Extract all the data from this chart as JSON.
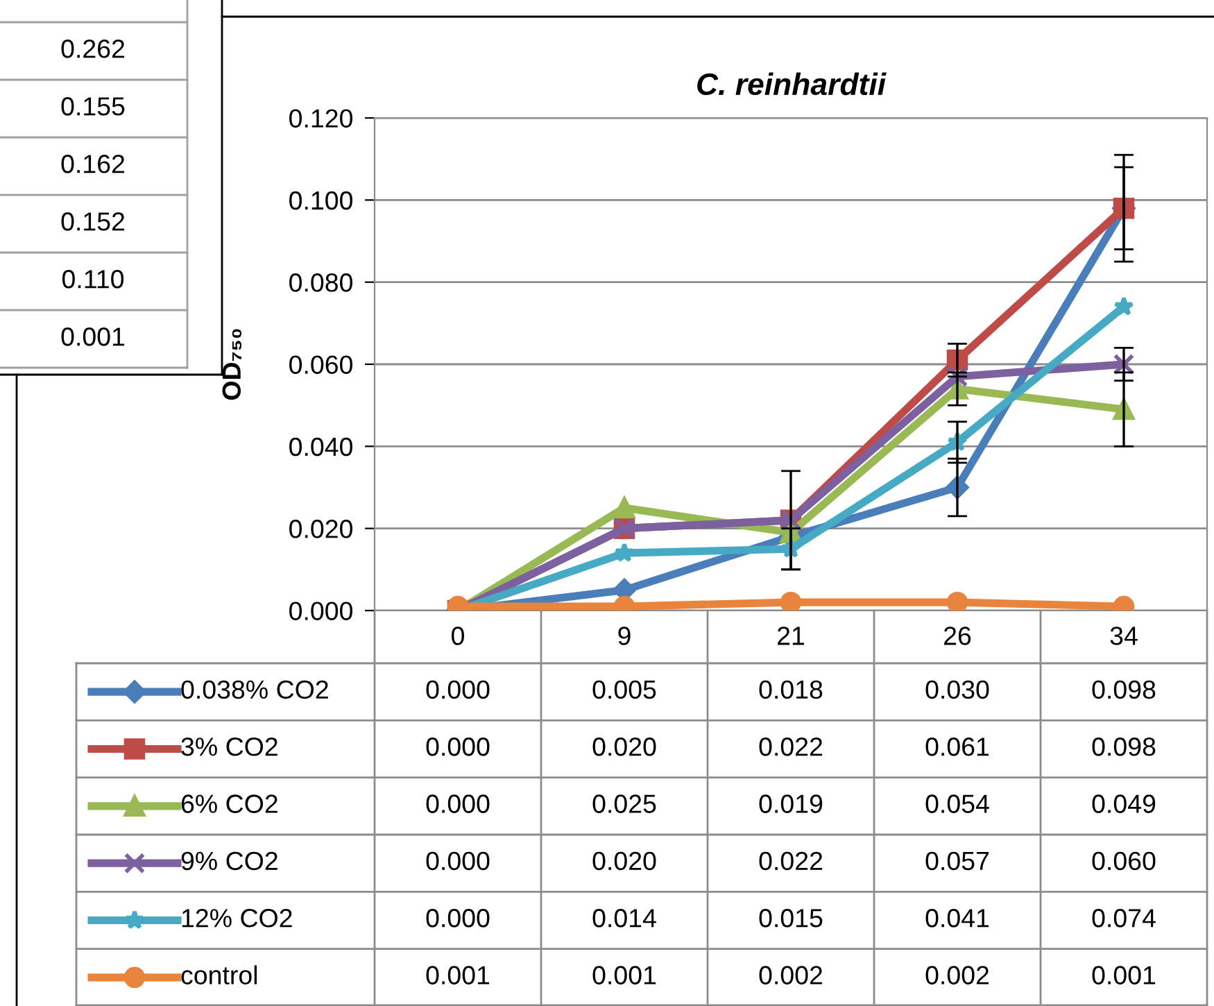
{
  "chart_data": [
    {
      "type": "other",
      "annotations": [
        "0.262",
        "0.155",
        "0.162",
        "0.152",
        "0.110",
        "0.001"
      ]
    },
    {
      "type": "line",
      "title": "C. reinhardtii",
      "ylabel": "OD₇₅₀",
      "categories": [
        "0",
        "9",
        "21",
        "26",
        "34"
      ],
      "ylim": [
        0,
        0.12
      ],
      "yticks": [
        {
          "value": 0,
          "label": "0.000"
        },
        {
          "value": 0.02,
          "label": "0.020"
        },
        {
          "value": 0.04,
          "label": "0.040"
        },
        {
          "value": 0.06,
          "label": "0.060"
        },
        {
          "value": 0.08,
          "label": "0.080"
        },
        {
          "value": 0.1,
          "label": "0.100"
        },
        {
          "value": 0.12,
          "label": "0.120"
        }
      ],
      "grid": "y",
      "legend": "bottom",
      "series": [
        {
          "name": "0.038% CO2",
          "color": "#4a7ebb",
          "marker": "diamond",
          "values": [
            0.0,
            0.005,
            0.018,
            0.03,
            0.098
          ],
          "value_labels": [
            "0.000",
            "0.005",
            "0.018",
            "0.030",
            "0.098"
          ],
          "errors": [
            null,
            null,
            null,
            0.007,
            0.01
          ]
        },
        {
          "name": "3% CO2",
          "color": "#be4b48",
          "marker": "square",
          "values": [
            0.0,
            0.02,
            0.022,
            0.061,
            0.098
          ],
          "value_labels": [
            "0.000",
            "0.020",
            "0.022",
            "0.061",
            "0.098"
          ],
          "errors": [
            null,
            null,
            0.012,
            0.004,
            0.013
          ]
        },
        {
          "name": "6% CO2",
          "color": "#98b954",
          "marker": "triangle",
          "values": [
            0.0,
            0.025,
            0.019,
            0.054,
            0.049
          ],
          "value_labels": [
            "0.000",
            "0.025",
            "0.019",
            "0.054",
            "0.049"
          ],
          "errors": [
            null,
            null,
            null,
            0.004,
            0.009
          ]
        },
        {
          "name": "9% CO2",
          "color": "#7d60a0",
          "marker": "cross",
          "values": [
            0.0,
            0.02,
            0.022,
            0.057,
            0.06
          ],
          "value_labels": [
            "0.000",
            "0.020",
            "0.022",
            "0.057",
            "0.060"
          ],
          "errors": [
            null,
            null,
            null,
            null,
            0.004
          ]
        },
        {
          "name": "12% CO2",
          "color": "#46aac5",
          "marker": "star",
          "values": [
            0.0,
            0.014,
            0.015,
            0.041,
            0.074
          ],
          "value_labels": [
            "0.000",
            "0.014",
            "0.015",
            "0.041",
            "0.074"
          ],
          "errors": [
            null,
            null,
            0.005,
            0.005,
            null
          ]
        },
        {
          "name": "control",
          "color": "#e8843c",
          "marker": "circle",
          "values": [
            0.001,
            0.001,
            0.002,
            0.002,
            0.001
          ],
          "value_labels": [
            "0.001",
            "0.001",
            "0.002",
            "0.002",
            "0.001"
          ]
        }
      ]
    }
  ]
}
